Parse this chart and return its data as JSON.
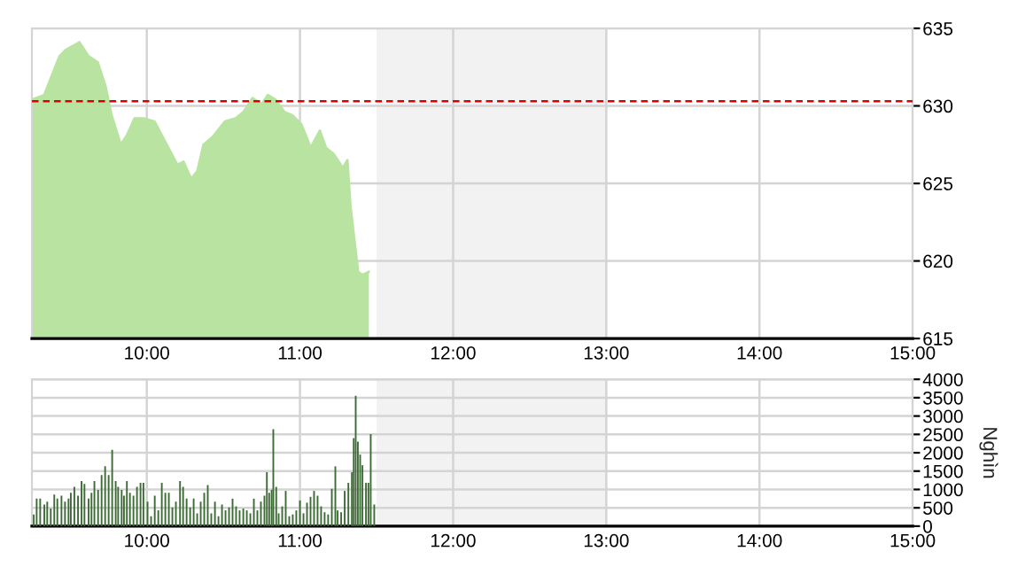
{
  "chart_data": [
    {
      "type": "area",
      "x": [
        9.25,
        9.33,
        9.37,
        9.43,
        9.47,
        9.56,
        9.62,
        9.68,
        9.73,
        9.77,
        9.83,
        9.87,
        9.92,
        9.98,
        10.05,
        10.12,
        10.2,
        10.24,
        10.29,
        10.33,
        10.37,
        10.43,
        10.51,
        10.58,
        10.63,
        10.69,
        10.75,
        10.79,
        10.84,
        10.9,
        10.95,
        11.01,
        11.07,
        11.13,
        11.17,
        11.22,
        11.28,
        11.31,
        11.33,
        11.38,
        11.41,
        11.45
      ],
      "series": [
        {
          "color": "#b9e3a0",
          "values": [
            630.4,
            630.7,
            631.7,
            633.2,
            633.6,
            634.1,
            633.2,
            632.8,
            631.3,
            629.4,
            627.5,
            628.1,
            629.2,
            629.2,
            629.0,
            627.7,
            626.2,
            626.4,
            625.3,
            625.8,
            627.5,
            628.0,
            629.0,
            629.2,
            629.6,
            630.5,
            630.1,
            630.7,
            630.4,
            629.6,
            629.4,
            628.8,
            627.3,
            628.4,
            627.3,
            626.9,
            626.0,
            626.5,
            623.5,
            619.3,
            619.1,
            619.3
          ]
        }
      ],
      "xlim": [
        9.25,
        15
      ],
      "xticks": [
        {
          "value": 10,
          "label": "10:00"
        },
        {
          "value": 11,
          "label": "11:00"
        },
        {
          "value": 12,
          "label": "12:00"
        },
        {
          "value": 13,
          "label": "13:00"
        },
        {
          "value": 14,
          "label": "14:00"
        },
        {
          "value": 15,
          "label": "15:00"
        }
      ],
      "ylim": [
        615,
        635
      ],
      "yticks": [
        615,
        620,
        625,
        630,
        635
      ],
      "ref_lines": [
        {
          "axis": "y",
          "value": 630.3,
          "color": "#dd0000",
          "line_style": "dashed"
        }
      ],
      "bands": [
        {
          "axis": "x",
          "from": 11.5,
          "to": 13,
          "color": "#f2f2f2"
        }
      ],
      "grid": true
    },
    {
      "type": "bar",
      "x": [
        9.262,
        9.281,
        9.304,
        9.331,
        9.35,
        9.373,
        9.396,
        9.416,
        9.443,
        9.466,
        9.489,
        9.504,
        9.527,
        9.551,
        9.574,
        9.593,
        9.62,
        9.639,
        9.658,
        9.682,
        9.705,
        9.728,
        9.751,
        9.774,
        9.797,
        9.813,
        9.836,
        9.851,
        9.87,
        9.89,
        9.913,
        9.936,
        9.959,
        9.978,
        10.005,
        10.028,
        10.052,
        10.075,
        10.098,
        10.121,
        10.144,
        10.167,
        10.19,
        10.217,
        10.237,
        10.26,
        10.283,
        10.306,
        10.329,
        10.352,
        10.375,
        10.398,
        10.421,
        10.445,
        10.468,
        10.491,
        10.514,
        10.537,
        10.56,
        10.583,
        10.606,
        10.63,
        10.653,
        10.676,
        10.699,
        10.722,
        10.745,
        10.768,
        10.784,
        10.799,
        10.815,
        10.826,
        10.845,
        10.861,
        10.884,
        10.907,
        10.93,
        10.953,
        10.976,
        11.0,
        11.023,
        11.046,
        11.069,
        11.092,
        11.115,
        11.138,
        11.161,
        11.184,
        11.208,
        11.231,
        11.246,
        11.269,
        11.292,
        11.316,
        11.339,
        11.351,
        11.364,
        11.378,
        11.393,
        11.408,
        11.431,
        11.447,
        11.462,
        11.485
      ],
      "series": [
        {
          "color": "#3d6b35",
          "values": [
            320,
            750,
            750,
            590,
            670,
            480,
            860,
            750,
            830,
            670,
            750,
            910,
            1070,
            830,
            1230,
            1150,
            750,
            910,
            1230,
            990,
            1390,
            1630,
            1390,
            2080,
            1230,
            1070,
            990,
            830,
            1230,
            910,
            830,
            1070,
            1180,
            1180,
            670,
            270,
            830,
            430,
            1180,
            910,
            910,
            510,
            670,
            1230,
            1070,
            750,
            510,
            750,
            350,
            670,
            910,
            1120,
            350,
            670,
            270,
            590,
            430,
            510,
            750,
            540,
            430,
            480,
            430,
            350,
            750,
            430,
            670,
            830,
            1470,
            910,
            990,
            2640,
            1070,
            350,
            540,
            960,
            270,
            320,
            430,
            700,
            350,
            640,
            800,
            960,
            830,
            540,
            380,
            320,
            1020,
            1630,
            430,
            380,
            960,
            1180,
            1470,
            2400,
            3550,
            2300,
            1950,
            1660,
            1180,
            1180,
            2510,
            590
          ]
        }
      ],
      "xlim": [
        9.25,
        15
      ],
      "xticks": [
        {
          "value": 10,
          "label": "10:00"
        },
        {
          "value": 11,
          "label": "11:00"
        },
        {
          "value": 12,
          "label": "12:00"
        },
        {
          "value": 13,
          "label": "13:00"
        },
        {
          "value": 14,
          "label": "14:00"
        },
        {
          "value": 15,
          "label": "15:00"
        }
      ],
      "ylim": [
        0,
        4000
      ],
      "yticks": [
        0,
        500,
        1000,
        1500,
        2000,
        2500,
        3000,
        3500,
        4000
      ],
      "ylabel": "Nghìn",
      "bands": [
        {
          "axis": "x",
          "from": 11.5,
          "to": 13,
          "color": "#f2f2f2"
        }
      ],
      "grid": true
    }
  ]
}
